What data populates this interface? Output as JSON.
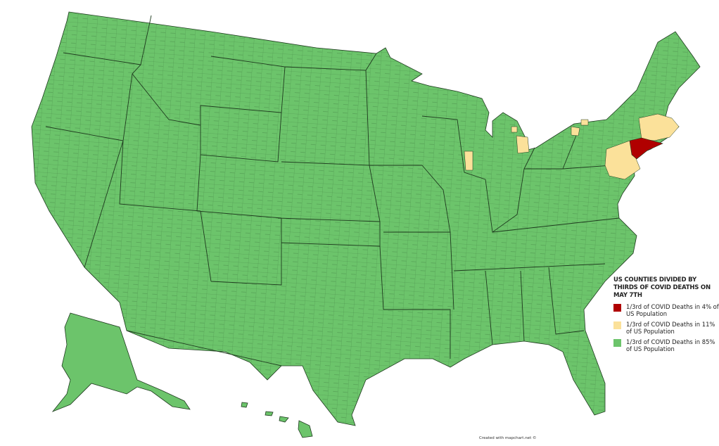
{
  "legend": {
    "title": "US COUNTIES DIVIDED BY THIRDS OF COVID DEATHS ON MAY 7TH",
    "items": [
      {
        "label": "1/3rd of COVID Deaths in 4% of US Population",
        "color": "#b00000"
      },
      {
        "label": "1/3rd of COVID Deaths in 11% of US Population",
        "color": "#fbe19a"
      },
      {
        "label": "1/3rd of COVID Deaths in 85% of US Population",
        "color": "#6cc46b"
      }
    ]
  },
  "credit": "Created with mapchart.net ©",
  "colors": {
    "border": "#1e3a1e",
    "background": "#ffffff"
  }
}
